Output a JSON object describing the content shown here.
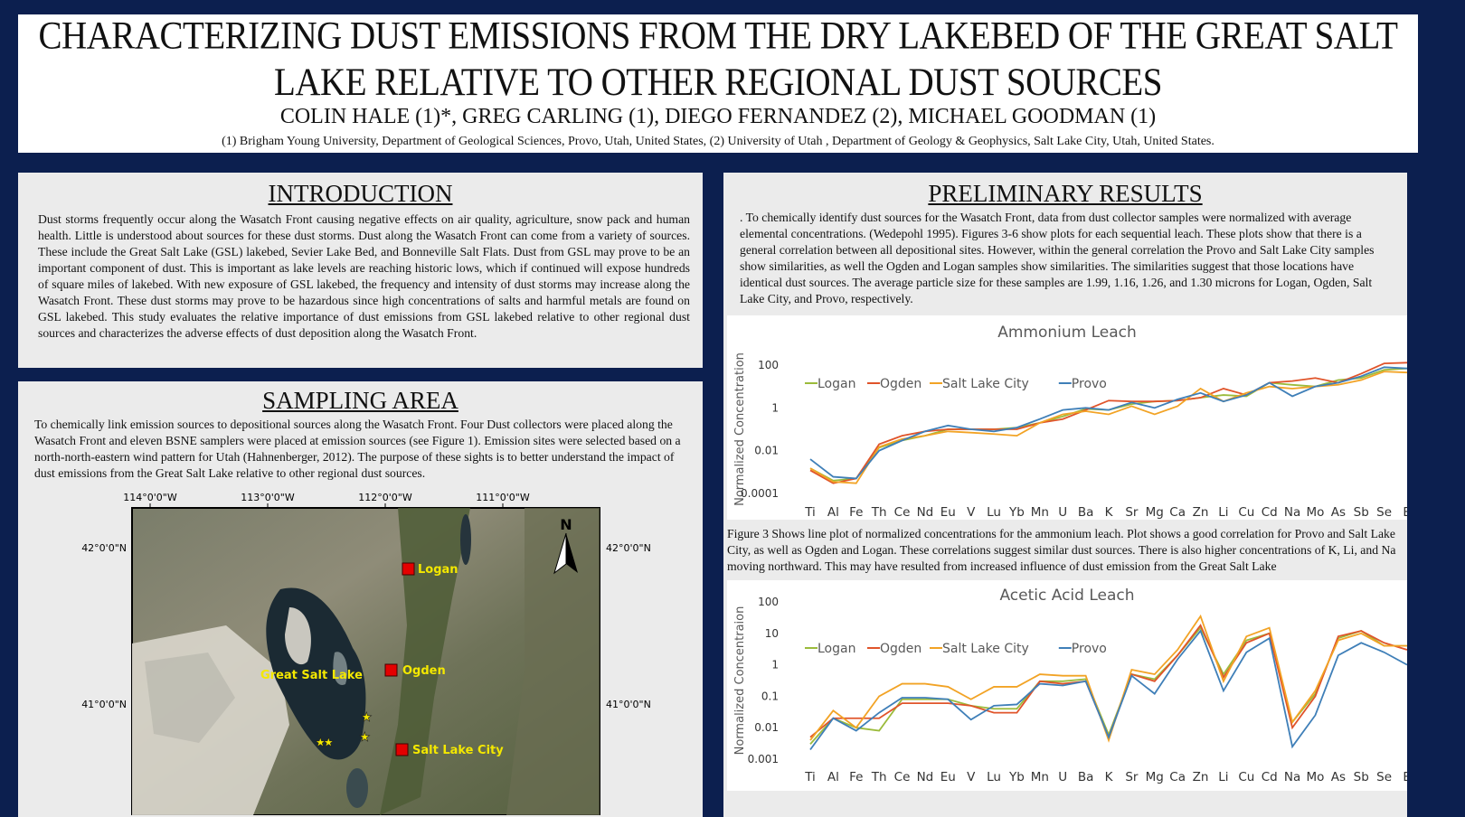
{
  "header": {
    "title_line1": "CHARACTERIZING DUST EMISSIONS FROM THE DRY LAKEBED OF THE GREAT SALT",
    "title_line2": "LAKE RELATIVE TO OTHER REGIONAL DUST SOURCES",
    "authors": "COLIN HALE (1)*, GREG CARLING (1), DIEGO FERNANDEZ (2), MICHAEL GOODMAN (1)",
    "affiliations": "(1) Brigham Young University, Department of Geological Sciences, Provo, Utah, United States,  (2) University of Utah , Department of Geology & Geophysics, Salt Lake City, Utah, United States."
  },
  "introduction": {
    "heading": "INTRODUCTION",
    "text": "Dust storms frequently occur along the Wasatch Front causing negative effects on air quality, agriculture, snow pack and human health. Little is understood about sources for these dust storms. Dust along the Wasatch Front can come from a variety of sources. These include the Great Salt Lake (GSL) lakebed, Sevier Lake Bed, and Bonneville Salt Flats. Dust from GSL may prove to be an important component of dust. This is important as lake levels are reaching historic lows, which if continued will expose hundreds of square miles of lakebed. With new exposure of GSL lakebed, the frequency and intensity of dust storms may increase along the Wasatch Front. These dust storms may prove to be hazardous since high concentrations of salts and harmful metals are found on GSL lakebed. This study evaluates the relative importance of dust emissions from GSL lakebed relative to other regional dust sources and characterizes the adverse effects of dust deposition along the Wasatch Front."
  },
  "sampling": {
    "heading": "SAMPLING AREA",
    "text": "To chemically link emission sources to depositional sources along the Wasatch Front. Four Dust collectors were placed along the Wasatch Front and eleven BSNE samplers were placed at emission sources (see Figure 1). Emission sites were selected based on a north-north-eastern wind pattern for Utah (Hahnenberger, 2012). The purpose of these sights is to better understand the impact of dust emissions from the Great Salt Lake relative to other regional dust sources.",
    "map": {
      "lon_labels": [
        "114°0'0\"W",
        "113°0'0\"W",
        "112°0'0\"W",
        "111°0'0\"W"
      ],
      "lat_labels": [
        "42°0'0\"N",
        "41°0'0\"N"
      ],
      "north": "N",
      "lake_label": "Great Salt Lake",
      "sites": [
        "Logan",
        "Ogden",
        "Salt Lake City"
      ]
    }
  },
  "results": {
    "heading": "PRELIMINARY RESULTS",
    "text": ". To chemically identify dust sources for the Wasatch Front, data from dust collector samples were normalized with average elemental concentrations. (Wedepohl 1995). Figures 3-6 show plots for each sequential leach. These plots show that there is a general correlation between all depositional sites. However, within the general correlation the Provo and Salt Lake City samples show similarities, as well the Ogden and Logan samples show similarities. The similarities suggest that those locations have identical dust sources. The average particle size for these samples are 1.99, 1.16, 1.26, and 1.30 microns for Logan, Ogden, Salt Lake City, and Provo, respectively.",
    "figure3_caption": "Figure 3 Shows line plot of normalized concentrations for the ammonium leach. Plot shows a good correlation for Provo and Salt Lake City, as well as Ogden and Logan. These correlations suggest similar dust sources. There is also higher concentrations of K, Li, and Na moving northward. This may have resulted from increased influence of dust emission from the Great Salt Lake"
  },
  "colors": {
    "logan": "#9bbb3b",
    "ogden": "#e0542a",
    "slc": "#f2a325",
    "provo": "#3f7fb8"
  },
  "chart_data": [
    {
      "type": "line",
      "title": "Ammonium Leach",
      "ylabel": "Normalized Concentration",
      "yscale": "log",
      "ylim": [
        0.0001,
        100
      ],
      "yticks": [
        "100",
        "1",
        "0.01",
        "0.0001"
      ],
      "legend": "top-left",
      "categories": [
        "Ti",
        "Al",
        "Fe",
        "Th",
        "Ce",
        "Nd",
        "Eu",
        "V",
        "Lu",
        "Yb",
        "Mn",
        "U",
        "Ba",
        "K",
        "Sr",
        "Mg",
        "Ca",
        "Zn",
        "Li",
        "Cu",
        "Cd",
        "Na",
        "Mo",
        "As",
        "Sb",
        "Se",
        "B"
      ],
      "series": [
        {
          "name": "Logan",
          "values": [
            0.0015,
            0.0004,
            0.0005,
            0.014,
            0.03,
            0.05,
            0.1,
            0.1,
            0.1,
            0.12,
            0.2,
            0.4,
            0.9,
            0.8,
            1.5,
            2,
            2.2,
            3,
            4,
            3.5,
            15,
            12,
            10,
            20,
            25,
            60,
            70
          ]
        },
        {
          "name": "Ogden",
          "values": [
            0.0012,
            0.0003,
            0.0005,
            0.02,
            0.05,
            0.08,
            0.1,
            0.1,
            0.1,
            0.1,
            0.2,
            0.3,
            0.8,
            2.2,
            2,
            2,
            2.2,
            3,
            8,
            4,
            15,
            18,
            25,
            15,
            40,
            120,
            130
          ]
        },
        {
          "name": "Salt Lake City",
          "values": [
            0.0015,
            0.00035,
            0.0003,
            0.015,
            0.035,
            0.05,
            0.08,
            0.07,
            0.06,
            0.05,
            0.2,
            0.5,
            0.7,
            0.5,
            1.2,
            0.5,
            1.2,
            8,
            2,
            5,
            10,
            8,
            10,
            12,
            20,
            50,
            45
          ]
        },
        {
          "name": "Provo",
          "values": [
            0.004,
            0.0006,
            0.0005,
            0.01,
            0.03,
            0.08,
            0.15,
            0.1,
            0.08,
            0.12,
            0.3,
            0.8,
            1,
            0.8,
            1.8,
            1,
            2.5,
            5,
            2,
            4,
            15,
            3.5,
            10,
            15,
            30,
            80,
            70
          ]
        }
      ]
    },
    {
      "type": "line",
      "title": "Acetic Acid Leach",
      "ylabel": "Normalized Concentraion",
      "yscale": "log",
      "ylim": [
        0.001,
        100
      ],
      "yticks": [
        "100",
        "10",
        "1",
        "0.1",
        "0.01",
        "0.001"
      ],
      "legend": "top-left",
      "categories": [
        "Ti",
        "Al",
        "Fe",
        "Th",
        "Ce",
        "Nd",
        "Eu",
        "V",
        "Lu",
        "Yb",
        "Mn",
        "U",
        "Ba",
        "K",
        "Sr",
        "Mg",
        "Ca",
        "Zn",
        "Li",
        "Cu",
        "Cd",
        "Na",
        "Mo",
        "As",
        "Sb",
        "Se",
        "B"
      ],
      "series": [
        {
          "name": "Logan",
          "values": [
            0.003,
            0.02,
            0.01,
            0.008,
            0.08,
            0.08,
            0.08,
            0.05,
            0.04,
            0.04,
            0.3,
            0.3,
            0.35,
            0.006,
            0.5,
            0.35,
            2,
            15,
            0.5,
            6,
            10,
            0.015,
            0.12,
            7,
            12,
            4,
            4
          ]
        },
        {
          "name": "Ogden",
          "values": [
            0.005,
            0.02,
            0.02,
            0.02,
            0.06,
            0.06,
            0.06,
            0.05,
            0.03,
            0.03,
            0.3,
            0.25,
            0.3,
            0.005,
            0.5,
            0.3,
            2,
            18,
            0.4,
            5,
            10,
            0.01,
            0.1,
            8,
            12,
            5,
            3
          ]
        },
        {
          "name": "Salt Lake City",
          "values": [
            0.004,
            0.035,
            0.01,
            0.1,
            0.25,
            0.25,
            0.2,
            0.08,
            0.2,
            0.2,
            0.5,
            0.45,
            0.45,
            0.004,
            0.7,
            0.5,
            3,
            35,
            0.3,
            8,
            15,
            0.015,
            0.15,
            6,
            10,
            4,
            4
          ]
        },
        {
          "name": "Provo",
          "values": [
            0.002,
            0.02,
            0.008,
            0.03,
            0.09,
            0.09,
            0.08,
            0.018,
            0.05,
            0.055,
            0.25,
            0.22,
            0.3,
            0.005,
            0.45,
            0.12,
            1.5,
            12,
            0.15,
            2.5,
            7,
            0.0025,
            0.025,
            2,
            5,
            2.5,
            1
          ]
        }
      ]
    }
  ]
}
